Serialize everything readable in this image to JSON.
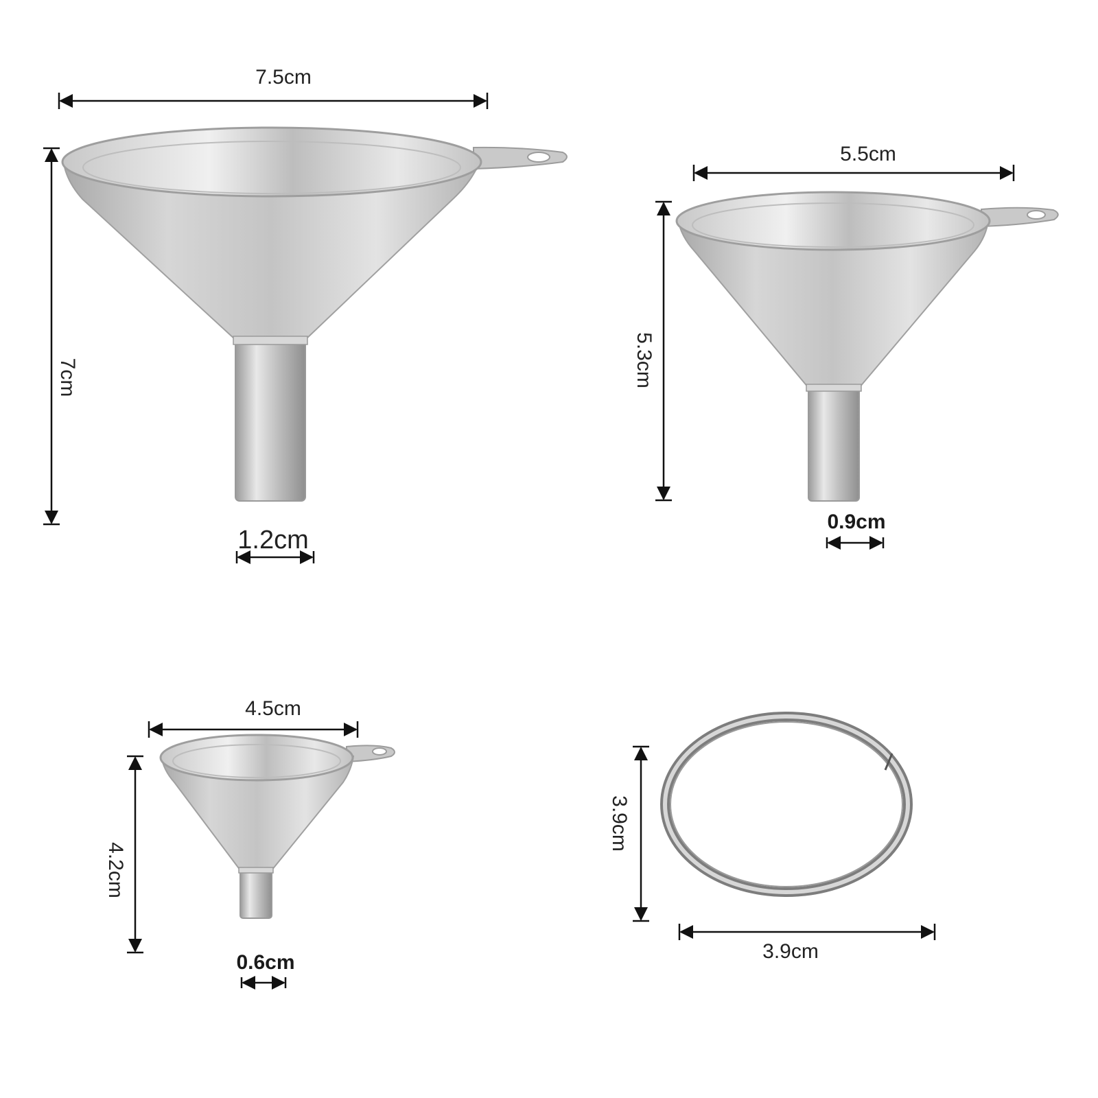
{
  "colors": {
    "background": "#ffffff",
    "steel_light": "#e2e2e2",
    "steel_mid": "#b9b9b9",
    "steel_dark": "#8c8c8c",
    "arrow": "#111111"
  },
  "items": {
    "large_funnel": {
      "width": "7.5cm",
      "height": "7cm",
      "spout": "1.2cm"
    },
    "medium_funnel": {
      "width": "5.5cm",
      "height": "5.3cm",
      "spout": "0.9cm"
    },
    "small_funnel": {
      "width": "4.5cm",
      "height": "4.2cm",
      "spout": "0.6cm"
    },
    "ring": {
      "width": "3.9cm",
      "height": "3.9cm"
    }
  }
}
